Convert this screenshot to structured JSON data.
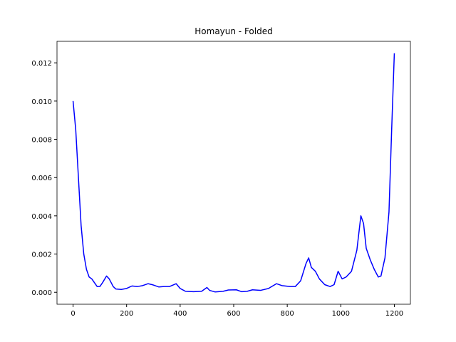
{
  "chart_data": {
    "type": "line",
    "title": "Homayun - Folded",
    "x": [
      0,
      10,
      20,
      30,
      40,
      50,
      60,
      70,
      80,
      90,
      100,
      110,
      125,
      135,
      150,
      160,
      180,
      200,
      220,
      240,
      260,
      280,
      300,
      320,
      340,
      360,
      385,
      400,
      420,
      450,
      480,
      500,
      510,
      530,
      560,
      580,
      610,
      630,
      650,
      670,
      700,
      730,
      760,
      780,
      810,
      830,
      850,
      870,
      880,
      890,
      905,
      920,
      940,
      960,
      975,
      990,
      1005,
      1020,
      1040,
      1060,
      1075,
      1085,
      1095,
      1110,
      1125,
      1140,
      1150,
      1165,
      1180,
      1190,
      1200
    ],
    "series": [
      {
        "color": "#0000ff",
        "values": [
          0.01,
          0.0085,
          0.006,
          0.0035,
          0.002,
          0.0012,
          0.0008,
          0.0007,
          0.0005,
          0.0003,
          0.0003,
          0.0005,
          0.00085,
          0.0007,
          0.0003,
          0.00017,
          0.00015,
          0.0002,
          0.00033,
          0.0003,
          0.00035,
          0.00045,
          0.00038,
          0.00028,
          0.0003,
          0.0003,
          0.00045,
          0.0002,
          5e-05,
          3e-05,
          5e-05,
          0.00025,
          0.0001,
          2e-05,
          5e-05,
          0.00012,
          0.00013,
          3e-05,
          5e-05,
          0.00013,
          0.0001,
          0.0002,
          0.00045,
          0.00035,
          0.0003,
          0.0003,
          0.0006,
          0.0015,
          0.0018,
          0.0013,
          0.0011,
          0.0007,
          0.0004,
          0.0003,
          0.0004,
          0.0011,
          0.0007,
          0.0008,
          0.0011,
          0.0022,
          0.004,
          0.0036,
          0.0023,
          0.0017,
          0.0012,
          0.0008,
          0.00085,
          0.0018,
          0.0042,
          0.0085,
          0.0125
        ]
      }
    ],
    "xlim": [
      -60,
      1260
    ],
    "xticks": [
      0,
      200,
      400,
      600,
      800,
      1000,
      1200
    ],
    "ylim": [
      -0.000625,
      0.013125
    ],
    "yticks": [
      {
        "value": 0,
        "label": "0.000"
      },
      {
        "value": 0.002,
        "label": "0.002"
      },
      {
        "value": 0.004,
        "label": "0.004"
      },
      {
        "value": 0.006,
        "label": "0.006"
      },
      {
        "value": 0.008,
        "label": "0.008"
      },
      {
        "value": 0.01,
        "label": "0.010"
      },
      {
        "value": 0.012,
        "label": "0.012"
      }
    ]
  }
}
